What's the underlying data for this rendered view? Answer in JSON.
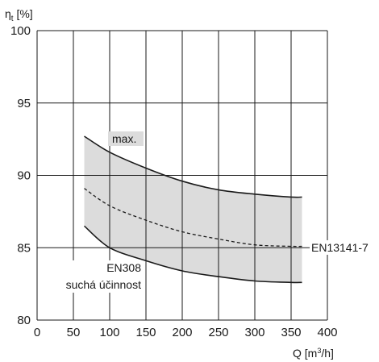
{
  "chart_data": {
    "type": "area",
    "title": "",
    "ylabel": {
      "symbol": "η",
      "sub": "t",
      "unit": " [%]"
    },
    "xlabel": {
      "base": "Q [m",
      "sup": "3",
      "tail": "/h]"
    },
    "xlim": [
      0,
      400
    ],
    "ylim": [
      80,
      100
    ],
    "x_ticks": [
      "0",
      "50",
      "100",
      "150",
      "200",
      "250",
      "300",
      "350",
      "400"
    ],
    "y_ticks": [
      "80",
      "85",
      "90",
      "95",
      "100"
    ],
    "grid": true,
    "band": {
      "fill": "#dcdcdc",
      "upper": {
        "x": [
          65,
          100,
          150,
          200,
          250,
          300,
          350,
          365
        ],
        "y": [
          92.7,
          91.6,
          90.5,
          89.6,
          89.0,
          88.7,
          88.5,
          88.5
        ]
      },
      "lower": {
        "x": [
          65,
          100,
          150,
          200,
          250,
          300,
          350,
          365
        ],
        "y": [
          86.5,
          85.0,
          84.1,
          83.4,
          83.0,
          82.7,
          82.6,
          82.6
        ]
      }
    },
    "series": [
      {
        "name": "max.",
        "style": "solid",
        "x": [
          65,
          100,
          150,
          200,
          250,
          300,
          350,
          365
        ],
        "y": [
          92.7,
          91.6,
          90.5,
          89.6,
          89.0,
          88.7,
          88.5,
          88.5
        ]
      },
      {
        "name": "EN13141-7",
        "style": "dashed",
        "x": [
          65,
          100,
          150,
          200,
          250,
          300,
          350,
          365
        ],
        "y": [
          89.1,
          87.9,
          86.9,
          86.1,
          85.6,
          85.2,
          85.1,
          85.1
        ]
      },
      {
        "name": "EN308 suchá účinnost",
        "style": "solid",
        "x": [
          65,
          100,
          150,
          200,
          250,
          300,
          350,
          365
        ],
        "y": [
          86.5,
          85.0,
          84.1,
          83.4,
          83.0,
          82.7,
          82.6,
          82.6
        ]
      }
    ],
    "annotations": {
      "max": "max.",
      "en13141": "EN13141-7",
      "en308_line1": "EN308",
      "en308_line2": "suchá účinnost"
    }
  }
}
